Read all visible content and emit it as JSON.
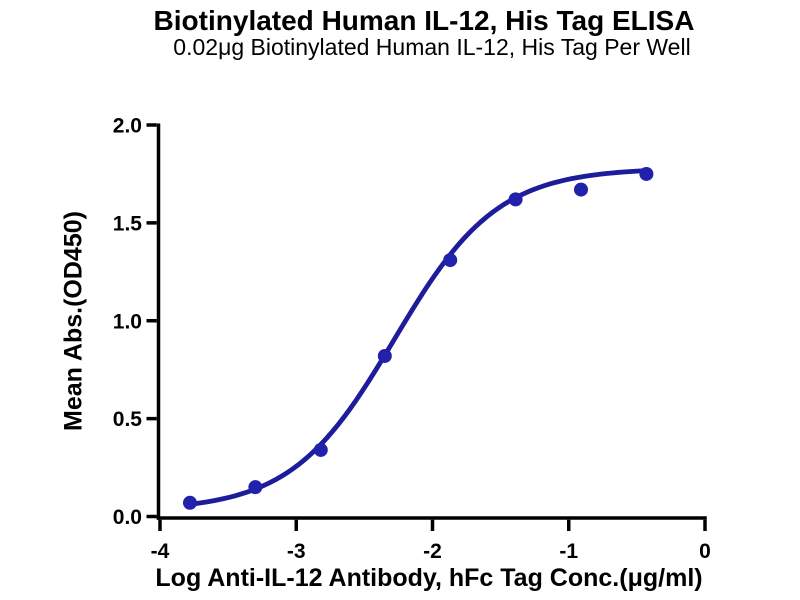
{
  "chart_data": {
    "type": "scatter",
    "title": "Biotinylated Human IL-12, His Tag ELISA",
    "subtitle": "0.02μg Biotinylated Human IL-12, His Tag Per Well",
    "xlabel": "Log Anti-IL-12 Antibody, hFc Tag Conc.(μg/ml)",
    "ylabel": "Mean Abs.(OD450)",
    "xlim": [
      -4,
      0
    ],
    "ylim": [
      0.0,
      2.0
    ],
    "grid": false,
    "legend": "none",
    "x_ticks": {
      "values": [
        -4,
        -3,
        -2,
        -1,
        0
      ],
      "labels": [
        "-4",
        "-3",
        "-2",
        "-1",
        "0"
      ]
    },
    "y_ticks": {
      "values": [
        0,
        0.5,
        1,
        1.5,
        2
      ],
      "labels": [
        "0.0",
        "0.5",
        "1.0",
        "1.5",
        "2.0"
      ]
    },
    "series": [
      {
        "name": "Anti-IL-12 Antibody, hFc Tag",
        "marker": "circle",
        "x": [
          -3.78,
          -3.3,
          -2.82,
          -2.35,
          -1.87,
          -1.39,
          -0.91,
          -0.43
        ],
        "y": [
          0.07,
          0.15,
          0.34,
          0.82,
          1.31,
          1.62,
          1.67,
          1.75
        ]
      }
    ],
    "curve_fit": {
      "model": "4PL-sigmoid",
      "bottom": 0.03,
      "top": 1.78,
      "log_ec50": -2.28,
      "hill": 1.15,
      "x_start": -3.78,
      "x_end": -0.43
    },
    "colors": {
      "curve": "#1d1d9c",
      "points": "#2121ab",
      "axis": "#000000",
      "text": "#000000"
    }
  }
}
